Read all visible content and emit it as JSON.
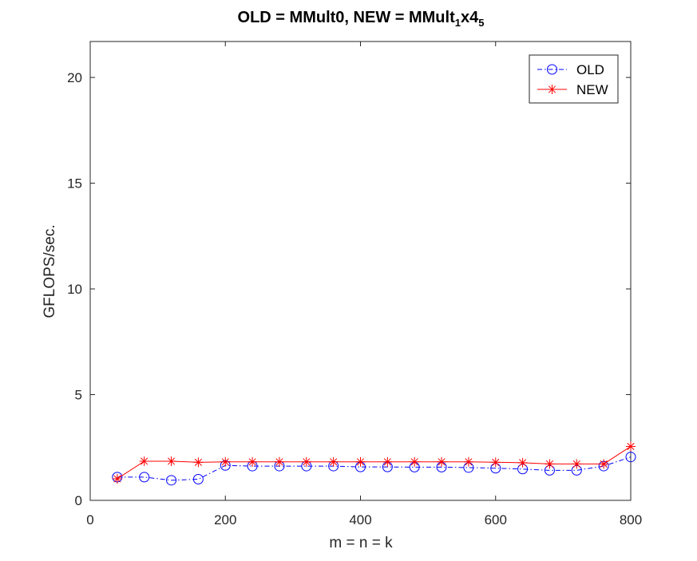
{
  "chart_data": {
    "type": "line",
    "title": "OLD = MMult0, NEW = MMult",
    "title_sub1": "1",
    "title_mid": "x4",
    "title_sub2": "5",
    "xlabel": "m = n = k",
    "ylabel": "GFLOPS/sec.",
    "xlim": [
      0,
      800
    ],
    "ylim": [
      0,
      21.7
    ],
    "xticks": [
      0,
      200,
      400,
      600,
      800
    ],
    "yticks": [
      0,
      5,
      10,
      15,
      20
    ],
    "grid": false,
    "legend_position": "top-right",
    "x": [
      40,
      80,
      120,
      160,
      200,
      240,
      280,
      320,
      360,
      400,
      440,
      480,
      520,
      560,
      600,
      640,
      680,
      720,
      760,
      800
    ],
    "series": [
      {
        "name": "OLD",
        "color": "#0000ff",
        "line_style": "dash-dot",
        "marker": "circle",
        "values": [
          1.1,
          1.1,
          0.95,
          1.0,
          1.65,
          1.62,
          1.62,
          1.62,
          1.62,
          1.58,
          1.58,
          1.57,
          1.57,
          1.55,
          1.52,
          1.48,
          1.42,
          1.42,
          1.62,
          2.05
        ]
      },
      {
        "name": "NEW",
        "color": "#ff0000",
        "line_style": "solid",
        "marker": "asterisk",
        "values": [
          1.02,
          1.85,
          1.85,
          1.8,
          1.82,
          1.82,
          1.82,
          1.82,
          1.82,
          1.82,
          1.82,
          1.82,
          1.82,
          1.82,
          1.8,
          1.78,
          1.72,
          1.72,
          1.72,
          2.55
        ]
      }
    ]
  }
}
